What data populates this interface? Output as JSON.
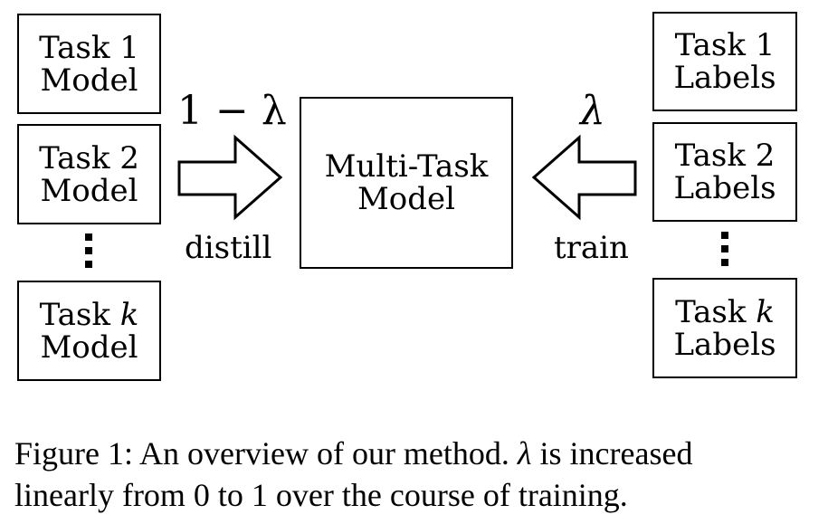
{
  "left": {
    "boxes": [
      {
        "line1": "Task 1",
        "line2": "Model"
      },
      {
        "line1": "Task 2",
        "line2": "Model"
      },
      {
        "line1": "Task k",
        "line2": "Model"
      }
    ]
  },
  "right": {
    "boxes": [
      {
        "line1": "Task 1",
        "line2": "Labels"
      },
      {
        "line1": "Task 2",
        "line2": "Labels"
      },
      {
        "line1": "Task k",
        "line2": "Labels"
      }
    ]
  },
  "center": {
    "line1": "Multi-Task",
    "line2": "Model"
  },
  "arrows": {
    "left_weight": "1 − λ",
    "left_label": "distill",
    "right_weight": "λ",
    "right_label": "train"
  },
  "caption": {
    "line1": "Figure 1: An overview of our method. λ is increased",
    "line2": "linearly from 0 to 1 over the course of training."
  }
}
